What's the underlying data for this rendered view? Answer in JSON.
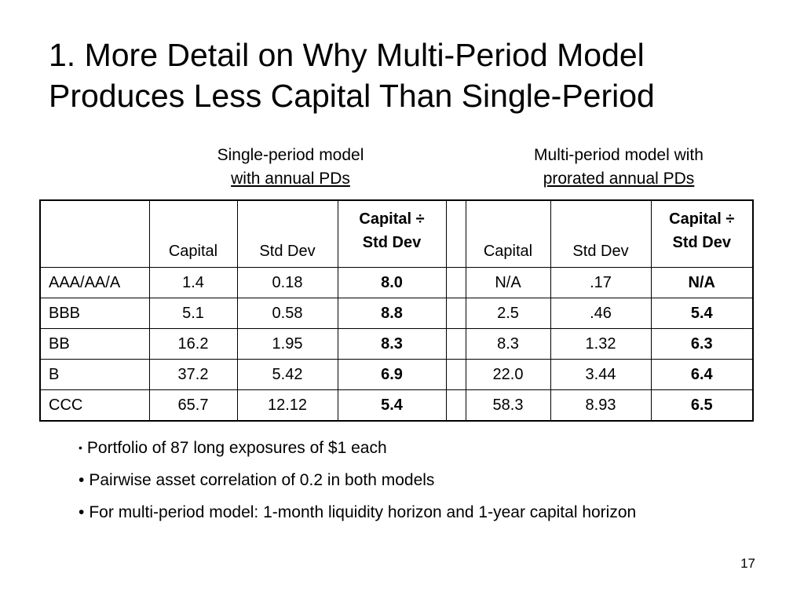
{
  "title": {
    "line1": "1. More Detail on Why Multi-Period Model",
    "line2": "Produces Less Capital Than Single-Period"
  },
  "groups": {
    "single": {
      "line1": "Single-period model",
      "line2": "with annual PDs"
    },
    "multi": {
      "line1": "Multi-period model with",
      "line2": "prorated annual PDs"
    }
  },
  "table": {
    "headers": {
      "capital": "Capital",
      "std_dev": "Std Dev",
      "ratio_line1": "Capital ÷",
      "ratio_line2": "Std Dev"
    },
    "rows": [
      {
        "rating": "AAA/AA/A",
        "s_capital": "1.4",
        "s_std": "0.18",
        "s_ratio": "8.0",
        "m_capital": "N/A",
        "m_std": ".17",
        "m_ratio": "N/A"
      },
      {
        "rating": "BBB",
        "s_capital": "5.1",
        "s_std": "0.58",
        "s_ratio": "8.8",
        "m_capital": "2.5",
        "m_std": ".46",
        "m_ratio": "5.4"
      },
      {
        "rating": "BB",
        "s_capital": "16.2",
        "s_std": "1.95",
        "s_ratio": "8.3",
        "m_capital": "8.3",
        "m_std": "1.32",
        "m_ratio": "6.3"
      },
      {
        "rating": "B",
        "s_capital": "37.2",
        "s_std": "5.42",
        "s_ratio": "6.9",
        "m_capital": "22.0",
        "m_std": "3.44",
        "m_ratio": "6.4"
      },
      {
        "rating": "CCC",
        "s_capital": "65.7",
        "s_std": "12.12",
        "s_ratio": "5.4",
        "m_capital": "58.3",
        "m_std": "8.93",
        "m_ratio": "6.5"
      }
    ]
  },
  "bullets": [
    "Portfolio of 87 long exposures of $1 each",
    "Pairwise asset correlation of 0.2 in both models",
    "For multi-period model: 1-month liquidity horizon and 1-year capital horizon"
  ],
  "page_number": "17"
}
